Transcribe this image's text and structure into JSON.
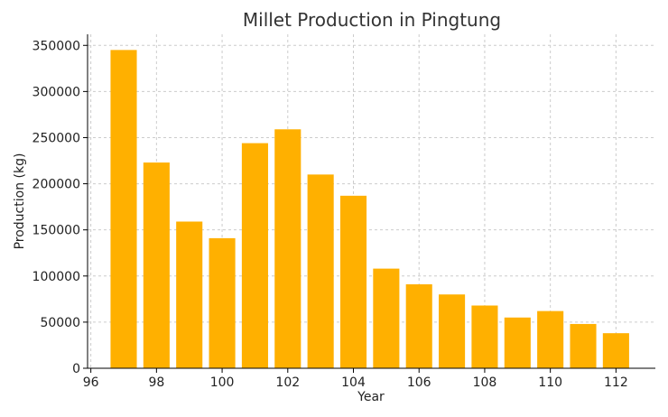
{
  "chart_data": {
    "type": "bar",
    "title": "Millet Production in Pingtung",
    "xlabel": "Year",
    "ylabel": "Production (kg)",
    "x": [
      97,
      98,
      99,
      100,
      101,
      102,
      103,
      104,
      105,
      106,
      107,
      108,
      109,
      110,
      111,
      112
    ],
    "values": [
      345000,
      223000,
      159000,
      141000,
      244000,
      259000,
      210000,
      187000,
      108000,
      91000,
      80000,
      68000,
      55000,
      62000,
      48000,
      38000
    ],
    "xlim": [
      95.9,
      113.2
    ],
    "ylim": [
      0,
      362000
    ],
    "xticks": [
      96,
      98,
      100,
      102,
      104,
      106,
      108,
      110,
      112
    ],
    "yticks": [
      0,
      50000,
      100000,
      150000,
      200000,
      250000,
      300000,
      350000
    ],
    "bar_color": "#ffb000",
    "grid": true
  }
}
